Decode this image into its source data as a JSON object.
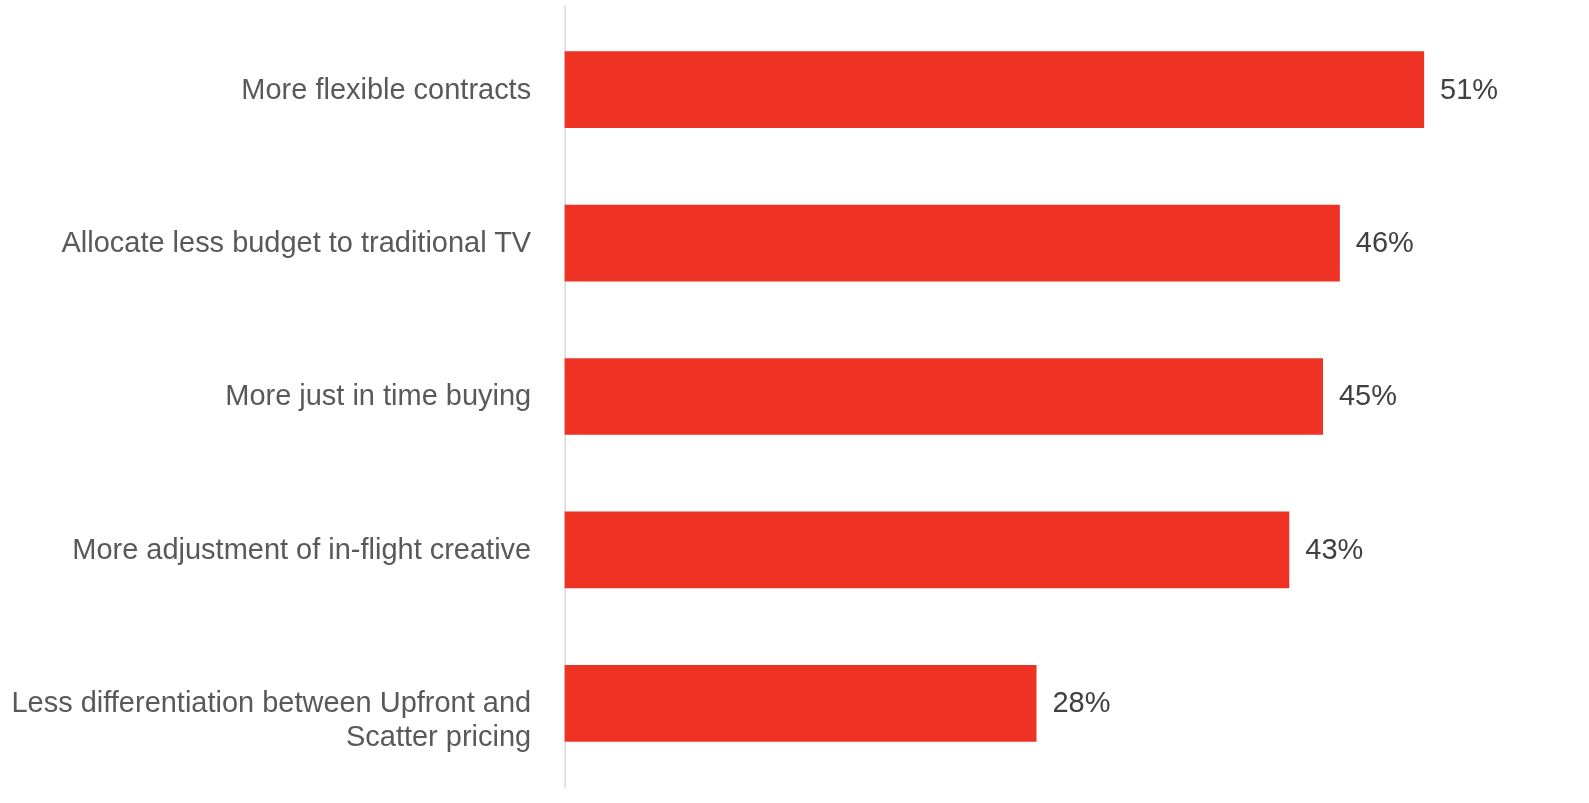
{
  "chart_data": {
    "type": "bar",
    "orientation": "horizontal",
    "categories": [
      "More flexible contracts",
      "Allocate less budget to traditional TV",
      "More just in time buying",
      "More adjustment of in-flight creative",
      "Less differentiation between Upfront and Scatter pricing"
    ],
    "values": [
      51,
      46,
      45,
      43,
      28
    ],
    "value_labels": [
      "51%",
      "46%",
      "45%",
      "43%",
      "28%"
    ],
    "color": "#ee3224"
  }
}
